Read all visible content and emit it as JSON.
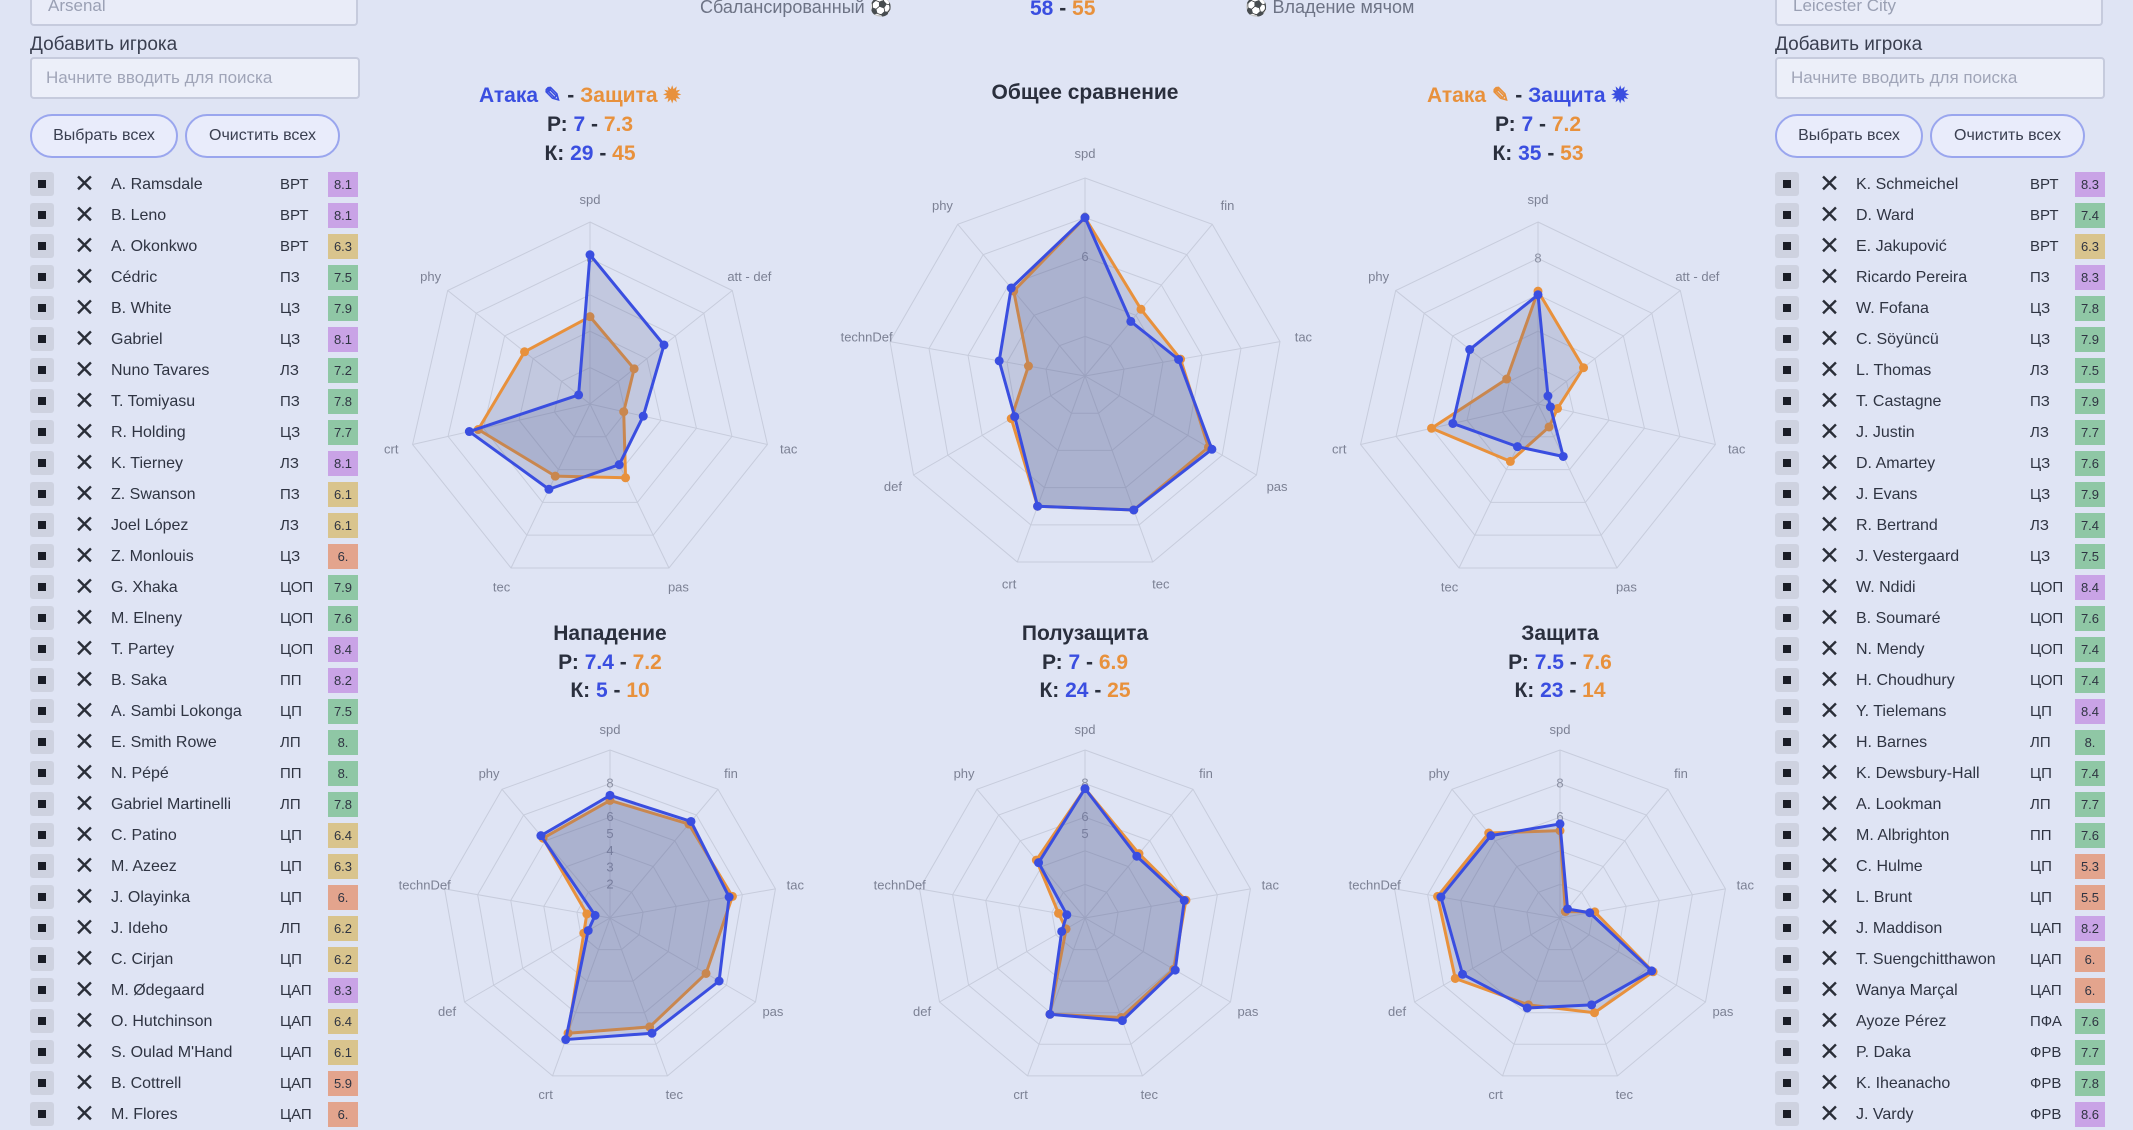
{
  "header": {
    "style_left": "Сбалансированный",
    "style_right": "Владение мячом",
    "score": {
      "left": "58",
      "separator": "-",
      "right": "55"
    }
  },
  "colors": {
    "team_left": "#3a4ee0",
    "team_right": "#e8913c",
    "background": "#dfe4f4"
  },
  "icons": {
    "edit": "pencil-icon",
    "badge": "sun-icon",
    "ball": "ball-icon"
  },
  "left_panel": {
    "team_select": "Arsenal",
    "add_player_label": "Добавить игрока",
    "search_placeholder": "Начните вводить для поиска",
    "select_all_label": "Выбрать всех",
    "clear_all_label": "Очистить всех",
    "players": [
      {
        "name": "A. Ramsdale",
        "pos": "ВРТ",
        "rating": "8.1",
        "color": "#c9a3e6"
      },
      {
        "name": "B. Leno",
        "pos": "ВРТ",
        "rating": "8.1",
        "color": "#c9a3e6"
      },
      {
        "name": "A. Okonkwo",
        "pos": "ВРТ",
        "rating": "6.3",
        "color": "#d9c48d"
      },
      {
        "name": "Cédric",
        "pos": "ПЗ",
        "rating": "7.5",
        "color": "#8fc7a5"
      },
      {
        "name": "B. White",
        "pos": "ЦЗ",
        "rating": "7.9",
        "color": "#8fc7a5"
      },
      {
        "name": "Gabriel",
        "pos": "ЦЗ",
        "rating": "8.1",
        "color": "#c9a3e6"
      },
      {
        "name": "Nuno Tavares",
        "pos": "ЛЗ",
        "rating": "7.2",
        "color": "#8fc7a5"
      },
      {
        "name": "T. Tomiyasu",
        "pos": "ПЗ",
        "rating": "7.8",
        "color": "#8fc7a5"
      },
      {
        "name": "R. Holding",
        "pos": "ЦЗ",
        "rating": "7.7",
        "color": "#8fc7a5"
      },
      {
        "name": "K. Tierney",
        "pos": "ЛЗ",
        "rating": "8.1",
        "color": "#c9a3e6"
      },
      {
        "name": "Z. Swanson",
        "pos": "ПЗ",
        "rating": "6.1",
        "color": "#d9c48d"
      },
      {
        "name": "Joel López",
        "pos": "ЛЗ",
        "rating": "6.1",
        "color": "#d9c48d"
      },
      {
        "name": "Z. Monlouis",
        "pos": "ЦЗ",
        "rating": "6.",
        "color": "#e3a48d"
      },
      {
        "name": "G. Xhaka",
        "pos": "ЦОП",
        "rating": "7.9",
        "color": "#8fc7a5"
      },
      {
        "name": "M. Elneny",
        "pos": "ЦОП",
        "rating": "7.6",
        "color": "#8fc7a5"
      },
      {
        "name": "T. Partey",
        "pos": "ЦОП",
        "rating": "8.4",
        "color": "#c9a3e6"
      },
      {
        "name": "B. Saka",
        "pos": "ПП",
        "rating": "8.2",
        "color": "#c9a3e6"
      },
      {
        "name": "A. Sambi Lokonga",
        "pos": "ЦП",
        "rating": "7.5",
        "color": "#8fc7a5"
      },
      {
        "name": "E. Smith Rowe",
        "pos": "ЛП",
        "rating": "8.",
        "color": "#8fc7a5"
      },
      {
        "name": "N. Pépé",
        "pos": "ПП",
        "rating": "8.",
        "color": "#8fc7a5"
      },
      {
        "name": "Gabriel Martinelli",
        "pos": "ЛП",
        "rating": "7.8",
        "color": "#8fc7a5"
      },
      {
        "name": "C. Patino",
        "pos": "ЦП",
        "rating": "6.4",
        "color": "#d9c48d"
      },
      {
        "name": "M. Azeez",
        "pos": "ЦП",
        "rating": "6.3",
        "color": "#d9c48d"
      },
      {
        "name": "J. Olayinka",
        "pos": "ЦП",
        "rating": "6.",
        "color": "#e3a48d"
      },
      {
        "name": "J. Ideho",
        "pos": "ЛП",
        "rating": "6.2",
        "color": "#d9c48d"
      },
      {
        "name": "C. Cirjan",
        "pos": "ЦП",
        "rating": "6.2",
        "color": "#d9c48d"
      },
      {
        "name": "M. Ødegaard",
        "pos": "ЦАП",
        "rating": "8.3",
        "color": "#c9a3e6"
      },
      {
        "name": "O. Hutchinson",
        "pos": "ЦАП",
        "rating": "6.4",
        "color": "#d9c48d"
      },
      {
        "name": "S. Oulad M'Hand",
        "pos": "ЦАП",
        "rating": "6.1",
        "color": "#d9c48d"
      },
      {
        "name": "B. Cottrell",
        "pos": "ЦАП",
        "rating": "5.9",
        "color": "#e3a48d"
      },
      {
        "name": "M. Flores",
        "pos": "ЦАП",
        "rating": "6.",
        "color": "#e3a48d"
      }
    ]
  },
  "right_panel": {
    "team_select": "Leicester City",
    "add_player_label": "Добавить игрока",
    "search_placeholder": "Начните вводить для поиска",
    "select_all_label": "Выбрать всех",
    "clear_all_label": "Очистить всех",
    "players": [
      {
        "name": "K. Schmeichel",
        "pos": "ВРТ",
        "rating": "8.3",
        "color": "#c9a3e6"
      },
      {
        "name": "D. Ward",
        "pos": "ВРТ",
        "rating": "7.4",
        "color": "#8fc7a5"
      },
      {
        "name": "E. Jakupović",
        "pos": "ВРТ",
        "rating": "6.3",
        "color": "#d9c48d"
      },
      {
        "name": "Ricardo Pereira",
        "pos": "ПЗ",
        "rating": "8.3",
        "color": "#c9a3e6"
      },
      {
        "name": "W. Fofana",
        "pos": "ЦЗ",
        "rating": "7.8",
        "color": "#8fc7a5"
      },
      {
        "name": "C. Söyüncü",
        "pos": "ЦЗ",
        "rating": "7.9",
        "color": "#8fc7a5"
      },
      {
        "name": "L. Thomas",
        "pos": "ЛЗ",
        "rating": "7.5",
        "color": "#8fc7a5"
      },
      {
        "name": "T. Castagne",
        "pos": "ПЗ",
        "rating": "7.9",
        "color": "#8fc7a5"
      },
      {
        "name": "J. Justin",
        "pos": "ЛЗ",
        "rating": "7.7",
        "color": "#8fc7a5"
      },
      {
        "name": "D. Amartey",
        "pos": "ЦЗ",
        "rating": "7.6",
        "color": "#8fc7a5"
      },
      {
        "name": "J. Evans",
        "pos": "ЦЗ",
        "rating": "7.9",
        "color": "#8fc7a5"
      },
      {
        "name": "R. Bertrand",
        "pos": "ЛЗ",
        "rating": "7.4",
        "color": "#8fc7a5"
      },
      {
        "name": "J. Vestergaard",
        "pos": "ЦЗ",
        "rating": "7.5",
        "color": "#8fc7a5"
      },
      {
        "name": "W. Ndidi",
        "pos": "ЦОП",
        "rating": "8.4",
        "color": "#c9a3e6"
      },
      {
        "name": "B. Soumaré",
        "pos": "ЦОП",
        "rating": "7.6",
        "color": "#8fc7a5"
      },
      {
        "name": "N. Mendy",
        "pos": "ЦОП",
        "rating": "7.4",
        "color": "#8fc7a5"
      },
      {
        "name": "H. Choudhury",
        "pos": "ЦОП",
        "rating": "7.4",
        "color": "#8fc7a5"
      },
      {
        "name": "Y. Tielemans",
        "pos": "ЦП",
        "rating": "8.4",
        "color": "#c9a3e6"
      },
      {
        "name": "H. Barnes",
        "pos": "ЛП",
        "rating": "8.",
        "color": "#8fc7a5"
      },
      {
        "name": "K. Dewsbury-Hall",
        "pos": "ЦП",
        "rating": "7.4",
        "color": "#8fc7a5"
      },
      {
        "name": "A. Lookman",
        "pos": "ЛП",
        "rating": "7.7",
        "color": "#8fc7a5"
      },
      {
        "name": "M. Albrighton",
        "pos": "ПП",
        "rating": "7.6",
        "color": "#8fc7a5"
      },
      {
        "name": "C. Hulme",
        "pos": "ЦП",
        "rating": "5.3",
        "color": "#e3a48d"
      },
      {
        "name": "L. Brunt",
        "pos": "ЦП",
        "rating": "5.5",
        "color": "#e3a48d"
      },
      {
        "name": "J. Maddison",
        "pos": "ЦАП",
        "rating": "8.2",
        "color": "#c9a3e6"
      },
      {
        "name": "T. Suengchitthawon",
        "pos": "ЦАП",
        "rating": "6.",
        "color": "#e3a48d"
      },
      {
        "name": "Wanya Marçal",
        "pos": "ЦАП",
        "rating": "6.",
        "color": "#e3a48d"
      },
      {
        "name": "Ayoze Pérez",
        "pos": "ПФА",
        "rating": "7.6",
        "color": "#8fc7a5"
      },
      {
        "name": "P. Daka",
        "pos": "ФРВ",
        "rating": "7.7",
        "color": "#8fc7a5"
      },
      {
        "name": "K. Iheanacho",
        "pos": "ФРВ",
        "rating": "7.8",
        "color": "#8fc7a5"
      },
      {
        "name": "J. Vardy",
        "pos": "ФРВ",
        "rating": "8.6",
        "color": "#c9a3e6"
      }
    ]
  },
  "chart_data": [
    {
      "type": "radar",
      "id": "left-attack-vs-defense",
      "title_parts": {
        "attack": "Атака",
        "separator": "-",
        "defense": "Защита"
      },
      "stats": [
        {
          "prefix": "Р:",
          "left": "7",
          "sep": "-",
          "right": "7.3"
        },
        {
          "prefix": "К:",
          "left": "29",
          "sep": "-",
          "right": "45"
        }
      ],
      "axes": [
        "spd",
        "att - def",
        "tac",
        "pas",
        "tec",
        "crt",
        "phy"
      ],
      "tick_labels": [
        "8"
      ],
      "range": [
        0,
        10
      ],
      "series": [
        {
          "values": [
            8.2,
            5.2,
            3.0,
            3.7,
            5.2,
            6.8,
            0.8
          ]
        },
        {
          "values": [
            4.8,
            3.1,
            1.9,
            4.5,
            4.4,
            6.3,
            4.6
          ]
        }
      ]
    },
    {
      "type": "radar",
      "id": "overall",
      "title": "Общее сравнение",
      "axes": [
        "spd",
        "fin",
        "tac",
        "pas",
        "tec",
        "crt",
        "def",
        "technDef",
        "phy"
      ],
      "tick_labels": [
        "8",
        "6"
      ],
      "range": [
        0,
        10
      ],
      "series": [
        {
          "values": [
            8.0,
            3.6,
            4.8,
            7.4,
            7.2,
            7.0,
            4.1,
            4.4,
            5.8
          ]
        },
        {
          "values": [
            8.0,
            4.4,
            4.9,
            7.2,
            7.2,
            7.0,
            4.3,
            2.9,
            5.6
          ]
        }
      ]
    },
    {
      "type": "radar",
      "id": "right-attack-vs-defense",
      "title_parts": {
        "attack": "Атака",
        "separator": "-",
        "defense": "Защита"
      },
      "stats": [
        {
          "prefix": "Р:",
          "left": "7",
          "sep": "-",
          "right": "7.2"
        },
        {
          "prefix": "К:",
          "left": "35",
          "sep": "-",
          "right": "53"
        }
      ],
      "axes": [
        "spd",
        "att - def",
        "tac",
        "pas",
        "tec",
        "crt",
        "phy"
      ],
      "tick_labels": [
        "8"
      ],
      "range": [
        0,
        10
      ],
      "series": [
        {
          "values": [
            6.0,
            0.7,
            0.7,
            3.2,
            2.6,
            4.8,
            4.8
          ]
        },
        {
          "values": [
            6.2,
            3.2,
            1.1,
            1.4,
            3.5,
            6.0,
            2.2
          ]
        }
      ]
    },
    {
      "type": "radar",
      "id": "attack",
      "title": "Нападение",
      "stats": [
        {
          "prefix": "Р:",
          "left": "7.4",
          "sep": "-",
          "right": "7.2"
        },
        {
          "prefix": "К:",
          "left": "5",
          "sep": "-",
          "right": "10"
        }
      ],
      "axes": [
        "spd",
        "fin",
        "tac",
        "pas",
        "tec",
        "crt",
        "def",
        "technDef",
        "phy"
      ],
      "tick_labels": [
        "8",
        "7",
        "6",
        "5",
        "4",
        "3",
        "2"
      ],
      "range": [
        0,
        10
      ],
      "series": [
        {
          "values": [
            7.3,
            7.5,
            7.2,
            7.5,
            7.3,
            7.7,
            1.5,
            0.9,
            6.4
          ]
        },
        {
          "values": [
            7.0,
            7.3,
            7.4,
            6.6,
            6.9,
            7.3,
            1.8,
            1.4,
            6.2
          ]
        }
      ]
    },
    {
      "type": "radar",
      "id": "midfield",
      "title": "Полузащита",
      "stats": [
        {
          "prefix": "Р:",
          "left": "7",
          "sep": "-",
          "right": "6.9"
        },
        {
          "prefix": "К:",
          "left": "24",
          "sep": "-",
          "right": "25"
        }
      ],
      "axes": [
        "spd",
        "fin",
        "tac",
        "pas",
        "tec",
        "crt",
        "def",
        "technDef",
        "phy"
      ],
      "tick_labels": [
        "8",
        "6",
        "5"
      ],
      "range": [
        0,
        10
      ],
      "series": [
        {
          "values": [
            7.7,
            4.8,
            6.0,
            6.2,
            6.5,
            6.1,
            1.6,
            1.1,
            4.3
          ]
        },
        {
          "values": [
            7.7,
            5.0,
            6.1,
            6.1,
            6.3,
            6.1,
            1.3,
            1.6,
            4.5
          ]
        }
      ]
    },
    {
      "type": "radar",
      "id": "defense",
      "title": "Защита",
      "stats": [
        {
          "prefix": "Р:",
          "left": "7.5",
          "sep": "-",
          "right": "7.6"
        },
        {
          "prefix": "К:",
          "left": "23",
          "sep": "-",
          "right": "14"
        }
      ],
      "axes": [
        "spd",
        "fin",
        "tac",
        "pas",
        "tec",
        "crt",
        "def",
        "technDef",
        "phy"
      ],
      "tick_labels": [
        "8",
        "6"
      ],
      "range": [
        0,
        10
      ],
      "series": [
        {
          "values": [
            5.6,
            0.7,
            1.8,
            6.3,
            5.5,
            5.7,
            6.7,
            7.2,
            6.4
          ]
        },
        {
          "values": [
            5.2,
            0.5,
            2.1,
            6.4,
            6.0,
            5.5,
            7.2,
            7.4,
            6.6
          ]
        }
      ]
    }
  ]
}
